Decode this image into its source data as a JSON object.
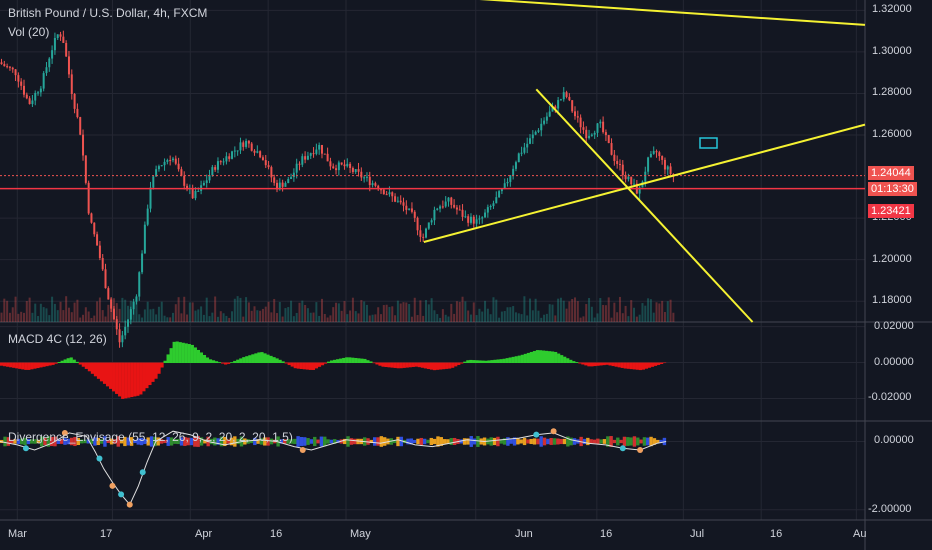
{
  "header": {
    "symbol": "British Pound / U.S. Dollar, 4h, FXCM",
    "vol_label": "Vol (20)"
  },
  "panels": {
    "macd_label": "MACD 4C (12, 26)",
    "div_label": "Divergence_Envisage (55, 12, 26, 9, 2, 20, 2, 20, 1.5)"
  },
  "price_axis": {
    "ticks": [
      "1.32000",
      "1.30000",
      "1.28000",
      "1.26000",
      "1.22000",
      "1.20000",
      "1.18000"
    ],
    "tick_values": [
      1.32,
      1.3,
      1.28,
      1.26,
      1.22,
      1.2,
      1.18
    ],
    "last_price": "1.24044",
    "countdown": "01:13:30",
    "level_price": "1.23421"
  },
  "macd_axis": {
    "ticks": [
      "0.02000",
      "0.00000",
      "-0.02000"
    ],
    "tick_values": [
      0.02,
      0.0,
      -0.02
    ]
  },
  "div_axis": {
    "ticks": [
      "0.00000",
      "-2.00000"
    ],
    "tick_values": [
      0.0,
      -2.0
    ]
  },
  "time_axis": {
    "labels": [
      "Mar",
      "17",
      "Apr",
      "16",
      "May",
      "Jun",
      "16",
      "Jul",
      "16",
      "Au"
    ]
  },
  "colors": {
    "background": "#131722",
    "grid": "#242733",
    "up": "#26a69a",
    "down": "#ef5350",
    "trendline": "#f5f232",
    "level": "#f23645",
    "macd_up": "#2ecc2e",
    "macd_down": "#e81414"
  },
  "chart_data": {
    "type": "candlestick",
    "title": "British Pound / U.S. Dollar, 4h, FXCM",
    "ylim": [
      1.17,
      1.325
    ],
    "price_path": [
      [
        0,
        1.295
      ],
      [
        0.02,
        1.29
      ],
      [
        0.035,
        1.275
      ],
      [
        0.05,
        1.285
      ],
      [
        0.06,
        1.3
      ],
      [
        0.07,
        1.31
      ],
      [
        0.075,
        1.305
      ],
      [
        0.085,
        1.28
      ],
      [
        0.095,
        1.26
      ],
      [
        0.105,
        1.22
      ],
      [
        0.115,
        1.205
      ],
      [
        0.125,
        1.185
      ],
      [
        0.14,
        1.16
      ],
      [
        0.15,
        1.172
      ],
      [
        0.16,
        1.185
      ],
      [
        0.175,
        1.235
      ],
      [
        0.185,
        1.245
      ],
      [
        0.2,
        1.25
      ],
      [
        0.21,
        1.24
      ],
      [
        0.225,
        1.23
      ],
      [
        0.235,
        1.235
      ],
      [
        0.25,
        1.245
      ],
      [
        0.265,
        1.25
      ],
      [
        0.285,
        1.257
      ],
      [
        0.305,
        1.25
      ],
      [
        0.32,
        1.235
      ],
      [
        0.335,
        1.238
      ],
      [
        0.35,
        1.248
      ],
      [
        0.37,
        1.255
      ],
      [
        0.385,
        1.245
      ],
      [
        0.4,
        1.245
      ],
      [
        0.42,
        1.24
      ],
      [
        0.44,
        1.235
      ],
      [
        0.455,
        1.23
      ],
      [
        0.47,
        1.225
      ],
      [
        0.48,
        1.22
      ],
      [
        0.49,
        1.21
      ],
      [
        0.505,
        1.225
      ],
      [
        0.52,
        1.228
      ],
      [
        0.54,
        1.22
      ],
      [
        0.555,
        1.218
      ],
      [
        0.57,
        1.226
      ],
      [
        0.585,
        1.235
      ],
      [
        0.6,
        1.25
      ],
      [
        0.615,
        1.258
      ],
      [
        0.63,
        1.267
      ],
      [
        0.645,
        1.275
      ],
      [
        0.655,
        1.28
      ],
      [
        0.665,
        1.27
      ],
      [
        0.68,
        1.26
      ],
      [
        0.695,
        1.265
      ],
      [
        0.71,
        1.25
      ],
      [
        0.725,
        1.24
      ],
      [
        0.74,
        1.232
      ],
      [
        0.75,
        1.247
      ],
      [
        0.76,
        1.252
      ],
      [
        0.77,
        1.245
      ],
      [
        0.78,
        1.24
      ]
    ],
    "trendlines": [
      {
        "x1": 0.49,
        "y1": 1.2085,
        "x2": 1.0,
        "y2": 1.265
      },
      {
        "x1": 0.62,
        "y1": 1.282,
        "x2": 0.87,
        "y2": 1.17
      },
      {
        "x1": 0.5,
        "y1": 1.327,
        "x2": 1.0,
        "y2": 1.313
      }
    ],
    "levels": [
      1.24044,
      1.23421
    ],
    "macd_hist": [
      [
        0,
        -0.0015
      ],
      [
        0.03,
        -0.004
      ],
      [
        0.06,
        -0.001
      ],
      [
        0.08,
        0.003
      ],
      [
        0.1,
        -0.004
      ],
      [
        0.12,
        -0.012
      ],
      [
        0.14,
        -0.02
      ],
      [
        0.16,
        -0.018
      ],
      [
        0.18,
        -0.008
      ],
      [
        0.2,
        0.012
      ],
      [
        0.22,
        0.01
      ],
      [
        0.24,
        0.002
      ],
      [
        0.26,
        -0.001
      ],
      [
        0.28,
        0.003
      ],
      [
        0.3,
        0.006
      ],
      [
        0.32,
        0.002
      ],
      [
        0.34,
        -0.003
      ],
      [
        0.36,
        -0.004
      ],
      [
        0.38,
        0.001
      ],
      [
        0.4,
        0.003
      ],
      [
        0.42,
        0.002
      ],
      [
        0.44,
        -0.002
      ],
      [
        0.46,
        -0.003
      ],
      [
        0.48,
        -0.002
      ],
      [
        0.5,
        -0.004
      ],
      [
        0.52,
        -0.003
      ],
      [
        0.54,
        0.0015
      ],
      [
        0.56,
        0.001
      ],
      [
        0.58,
        0.002
      ],
      [
        0.6,
        0.004
      ],
      [
        0.62,
        0.007
      ],
      [
        0.64,
        0.006
      ],
      [
        0.66,
        0.001
      ],
      [
        0.68,
        -0.002
      ],
      [
        0.7,
        -0.001
      ],
      [
        0.72,
        -0.003
      ],
      [
        0.74,
        -0.004
      ],
      [
        0.76,
        -0.001
      ],
      [
        0.77,
        0.0005
      ]
    ],
    "divergence_line": [
      [
        0,
        0.0
      ],
      [
        0.02,
        -0.1
      ],
      [
        0.04,
        -0.25
      ],
      [
        0.06,
        -0.05
      ],
      [
        0.08,
        0.25
      ],
      [
        0.1,
        0.15
      ],
      [
        0.11,
        -0.3
      ],
      [
        0.12,
        -0.8
      ],
      [
        0.13,
        -1.2
      ],
      [
        0.14,
        -1.55
      ],
      [
        0.15,
        -1.85
      ],
      [
        0.16,
        -1.3
      ],
      [
        0.17,
        -0.6
      ],
      [
        0.18,
        0.0
      ],
      [
        0.2,
        0.3
      ],
      [
        0.22,
        0.2
      ],
      [
        0.24,
        0.0
      ],
      [
        0.26,
        -0.1
      ],
      [
        0.28,
        0.0
      ],
      [
        0.3,
        0.05
      ],
      [
        0.32,
        0.0
      ],
      [
        0.34,
        -0.15
      ],
      [
        0.36,
        -0.25
      ],
      [
        0.38,
        -0.1
      ],
      [
        0.4,
        0.05
      ],
      [
        0.42,
        0.0
      ],
      [
        0.44,
        -0.05
      ],
      [
        0.46,
        0.05
      ],
      [
        0.48,
        -0.1
      ],
      [
        0.5,
        -0.15
      ],
      [
        0.52,
        -0.05
      ],
      [
        0.54,
        0.05
      ],
      [
        0.56,
        0.0
      ],
      [
        0.58,
        0.05
      ],
      [
        0.6,
        0.1
      ],
      [
        0.62,
        0.2
      ],
      [
        0.64,
        0.25
      ],
      [
        0.66,
        0.05
      ],
      [
        0.68,
        -0.05
      ],
      [
        0.7,
        -0.1
      ],
      [
        0.72,
        -0.2
      ],
      [
        0.74,
        -0.25
      ],
      [
        0.76,
        -0.05
      ],
      [
        0.77,
        0.0
      ]
    ],
    "div_ylim": [
      -2.3,
      0.6
    ],
    "macd_ylim": [
      -0.032,
      0.022
    ]
  }
}
